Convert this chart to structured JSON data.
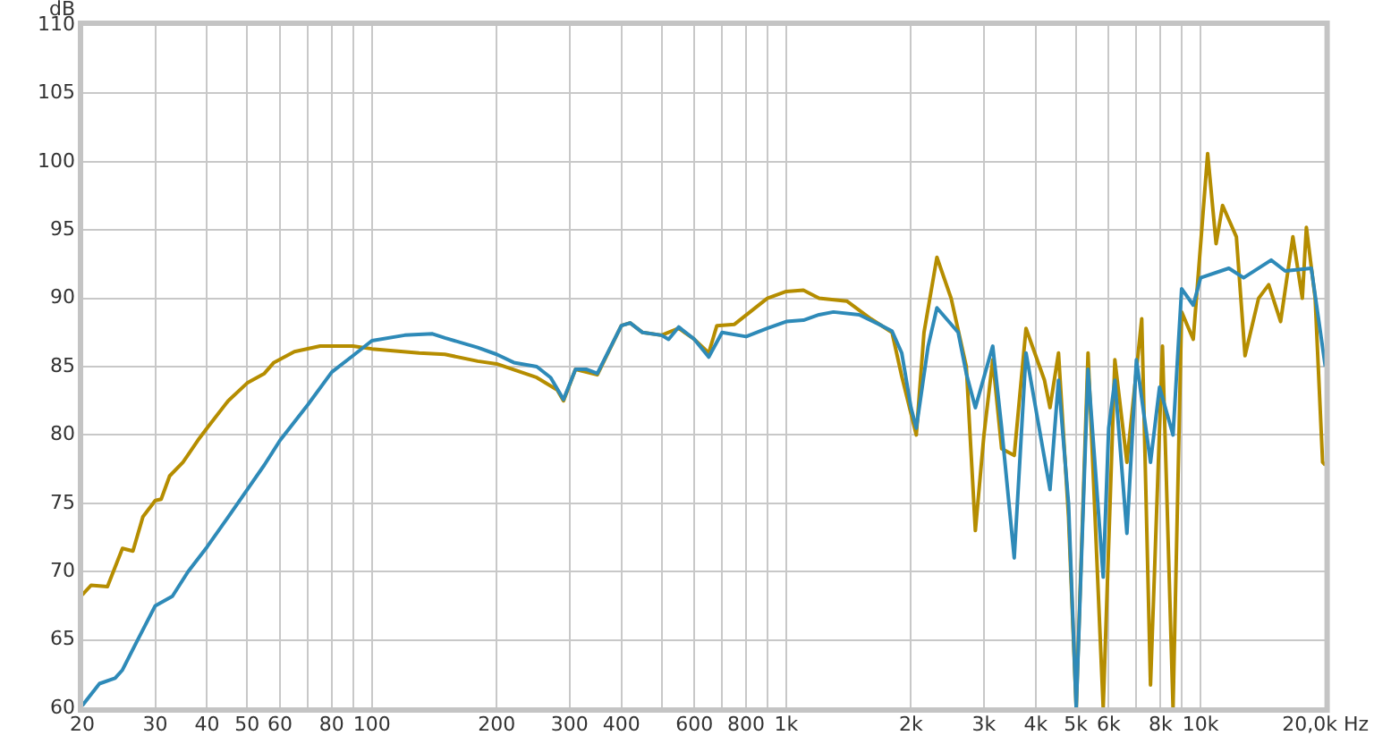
{
  "chart_data": {
    "type": "line",
    "xlabel": null,
    "ylabel": "dB",
    "log": "x",
    "grid": true,
    "marker": "none",
    "line_style": "solid",
    "xlim": [
      20,
      20000
    ],
    "ylim": [
      60,
      110
    ],
    "yticks": [
      60,
      65,
      70,
      75,
      80,
      85,
      90,
      95,
      100,
      105,
      110
    ],
    "xticks": [
      20,
      30,
      40,
      50,
      60,
      {
        "value": 70,
        "label": null
      },
      80,
      {
        "value": 90,
        "label": null
      },
      100,
      200,
      300,
      400,
      {
        "value": 500,
        "label": null
      },
      600,
      {
        "value": 700,
        "label": null
      },
      800,
      {
        "value": 900,
        "label": null
      },
      {
        "value": 1000,
        "label": "1k"
      },
      {
        "value": 2000,
        "label": "2k"
      },
      {
        "value": 3000,
        "label": "3k"
      },
      {
        "value": 4000,
        "label": "4k"
      },
      {
        "value": 5000,
        "label": "5k"
      },
      {
        "value": 6000,
        "label": "6k"
      },
      {
        "value": 7000,
        "label": null
      },
      {
        "value": 8000,
        "label": "8k"
      },
      {
        "value": 9000,
        "label": null
      },
      {
        "value": 10000,
        "label": "10k"
      },
      {
        "value": 20000,
        "label": "20,0k Hz"
      }
    ],
    "series": [
      {
        "color": "#2e8ab8",
        "x": [
          20,
          22,
          24,
          25,
          27,
          30,
          33,
          36,
          40,
          45,
          50,
          55,
          60,
          70,
          80,
          90,
          100,
          120,
          140,
          150,
          180,
          200,
          220,
          250,
          270,
          290,
          310,
          330,
          350,
          400,
          420,
          450,
          500,
          520,
          550,
          600,
          650,
          700,
          800,
          900,
          1000,
          1100,
          1200,
          1300,
          1500,
          1700,
          1800,
          1900,
          2000,
          2060,
          2200,
          2310,
          2600,
          2720,
          2860,
          3150,
          3310,
          3550,
          3790,
          4330,
          4540,
          4800,
          5010,
          5350,
          5820,
          6000,
          6210,
          6640,
          7000,
          7570,
          7960,
          8580,
          9000,
          9600,
          10000,
          11700,
          12700,
          14800,
          16000,
          18500,
          20000
        ],
        "values": [
          60.2,
          61.8,
          62.2,
          62.8,
          64.8,
          67.5,
          68.2,
          70.0,
          71.8,
          74.0,
          76.0,
          77.8,
          79.6,
          82.2,
          84.6,
          85.8,
          86.9,
          87.3,
          87.4,
          87.1,
          86.4,
          85.9,
          85.3,
          85.0,
          84.2,
          82.6,
          84.8,
          84.8,
          84.5,
          88.0,
          88.2,
          87.5,
          87.3,
          87.0,
          87.9,
          87.0,
          85.7,
          87.5,
          87.2,
          87.8,
          88.3,
          88.4,
          88.8,
          89.0,
          88.8,
          88.0,
          87.6,
          86.0,
          82.0,
          80.5,
          86.5,
          89.3,
          87.5,
          84.5,
          82.0,
          86.5,
          80.5,
          71.0,
          86.0,
          76.0,
          84.0,
          75.0,
          60.0,
          84.8,
          69.6,
          80.5,
          84.0,
          72.8,
          85.5,
          78.0,
          83.5,
          80.0,
          90.7,
          89.5,
          91.5,
          92.2,
          91.5,
          92.8,
          92.0,
          92.2,
          85.0
        ]
      },
      {
        "color": "#b58d00",
        "x": [
          20,
          21,
          23,
          25,
          26.5,
          28,
          30,
          31,
          32.5,
          35,
          38,
          40,
          45,
          50,
          55,
          58,
          65,
          75,
          90,
          100,
          130,
          150,
          180,
          200,
          250,
          280,
          290,
          310,
          350,
          400,
          420,
          450,
          500,
          550,
          600,
          650,
          680,
          750,
          900,
          1000,
          1100,
          1200,
          1400,
          1600,
          1800,
          1900,
          2060,
          2150,
          2310,
          2500,
          2720,
          2860,
          3000,
          3150,
          3310,
          3550,
          3790,
          4200,
          4330,
          4540,
          4800,
          5010,
          5350,
          5820,
          6210,
          6640,
          7210,
          7570,
          8090,
          8580,
          9000,
          9600,
          10400,
          10900,
          11300,
          12200,
          12800,
          13800,
          14600,
          15600,
          16700,
          17600,
          18000,
          18900,
          19700,
          20000
        ],
        "values": [
          68.3,
          69.0,
          68.9,
          71.7,
          71.5,
          74.0,
          75.2,
          75.3,
          77.0,
          78.0,
          79.6,
          80.5,
          82.5,
          83.8,
          84.5,
          85.3,
          86.1,
          86.5,
          86.5,
          86.3,
          86.0,
          85.9,
          85.4,
          85.2,
          84.2,
          83.3,
          82.5,
          84.8,
          84.4,
          88.0,
          88.2,
          87.5,
          87.3,
          87.8,
          87.0,
          86.0,
          88.0,
          88.1,
          90.0,
          90.5,
          90.6,
          90.0,
          89.8,
          88.5,
          87.5,
          84.3,
          80.0,
          87.5,
          93.0,
          90.0,
          85.0,
          73.0,
          80.0,
          85.5,
          79.0,
          78.5,
          87.8,
          84.0,
          82.0,
          86.0,
          74.0,
          60.0,
          86.0,
          60.0,
          85.5,
          78.0,
          88.5,
          61.7,
          86.5,
          60.0,
          89.0,
          87.0,
          100.6,
          94.0,
          96.8,
          94.5,
          85.8,
          90.0,
          91.0,
          88.3,
          94.5,
          90.0,
          95.2,
          90.0,
          78.0,
          77.8
        ]
      }
    ]
  }
}
